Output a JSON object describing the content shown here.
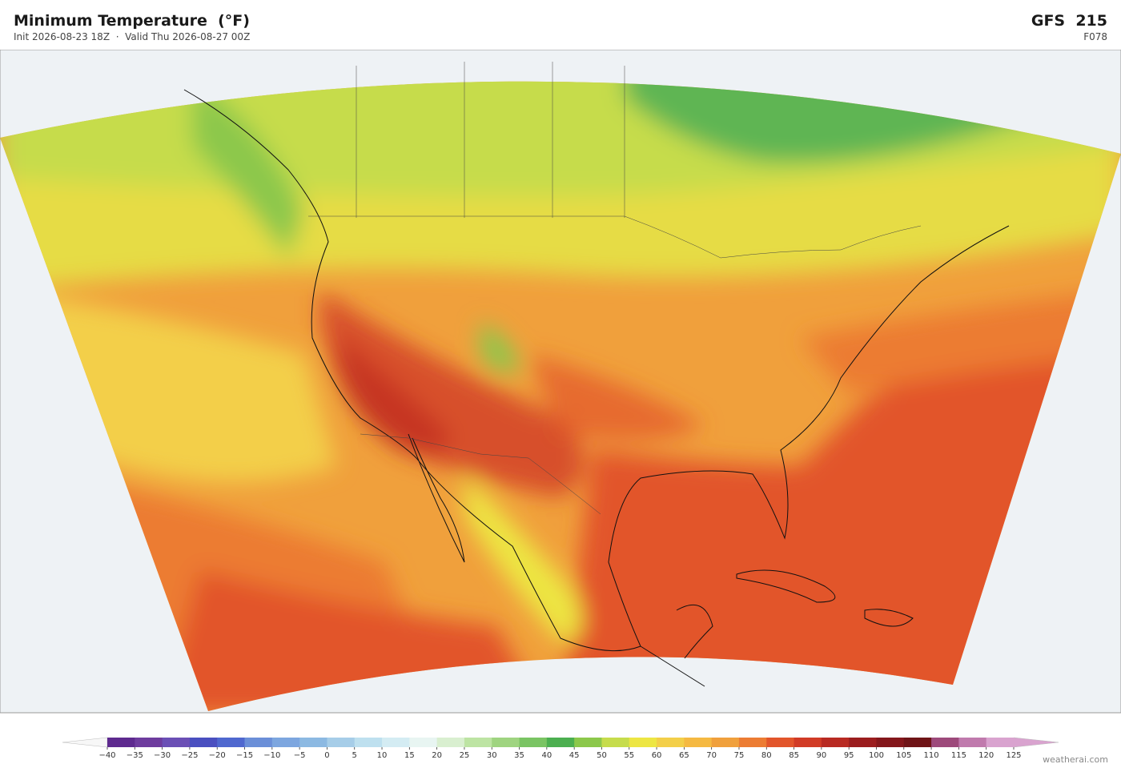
{
  "header": {
    "title": "Minimum Temperature  (°F)",
    "init": "Init 2026-08-23 18Z",
    "separator": "·",
    "valid": "Valid Thu 2026-08-27 00Z",
    "model": "GFS  215",
    "forecast_hour": "F078"
  },
  "colorbar": {
    "ticks": [
      {
        "value": -40,
        "label": "−40"
      },
      {
        "value": -35,
        "label": "−35"
      },
      {
        "value": -30,
        "label": "−30"
      },
      {
        "value": -25,
        "label": "−25"
      },
      {
        "value": -20,
        "label": "−20"
      },
      {
        "value": -15,
        "label": "−15"
      },
      {
        "value": -10,
        "label": "−10"
      },
      {
        "value": -5,
        "label": "−5"
      },
      0,
      5,
      10,
      15,
      20,
      25,
      30,
      35,
      40,
      45,
      50,
      55,
      60,
      65,
      70,
      75,
      80,
      85,
      90,
      95,
      100,
      105,
      110,
      115,
      120,
      125
    ],
    "colors": [
      "#5e2a8f",
      "#6e3c9e",
      "#6b4fb5",
      "#4a4fc0",
      "#4f68cf",
      "#6b8fd8",
      "#7da6df",
      "#8cb9e2",
      "#a6cde8",
      "#bee0ef",
      "#d4ecf3",
      "#e8f5f2",
      "#d9efd0",
      "#bde4a3",
      "#9fd480",
      "#7ac463",
      "#4caf50",
      "#8cc84b",
      "#c6dc4c",
      "#ede643",
      "#f3cf49",
      "#f5b942",
      "#f0a03c",
      "#ec7c33",
      "#e2552b",
      "#d13b26",
      "#b82a22",
      "#9b1d1e",
      "#84171b",
      "#6f1417",
      "#9d4a7b",
      "#c07aad",
      "#d9a3cf"
    ],
    "under_color": "#f7f7f7",
    "over_color": "#d9a3cf"
  },
  "footer": {
    "credit": "weatherai.com"
  }
}
